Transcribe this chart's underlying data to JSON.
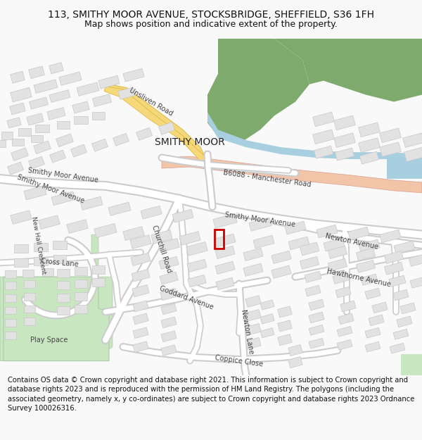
{
  "title_line1": "113, SMITHY MOOR AVENUE, STOCKSBRIDGE, SHEFFIELD, S36 1FH",
  "title_line2": "Map shows position and indicative extent of the property.",
  "footer": "Contains OS data © Crown copyright and database right 2021. This information is subject to Crown copyright and database rights 2023 and is reproduced with the permission of HM Land Registry. The polygons (including the associated geometry, namely x, y co-ordinates) are subject to Crown copyright and database rights 2023 Ordnance Survey 100026316.",
  "bg_color": "#f8f8f8",
  "map_bg": "#ffffff",
  "building_color": "#e2e2e2",
  "building_stroke": "#c8c8c8",
  "green_dark": "#7faa6e",
  "green_light": "#c8e6c0",
  "water_color": "#a8cfe0",
  "yellow_road_fill": "#f5d87a",
  "yellow_road_stroke": "#d4a820",
  "major_road_fill": "#f2c4a8",
  "major_road_stroke": "#d8a090",
  "road_stroke": "#cccccc",
  "plot_color": "#cc0000",
  "title_fontsize": 10,
  "subtitle_fontsize": 9,
  "footer_fontsize": 7.2,
  "label_fontsize": 7
}
